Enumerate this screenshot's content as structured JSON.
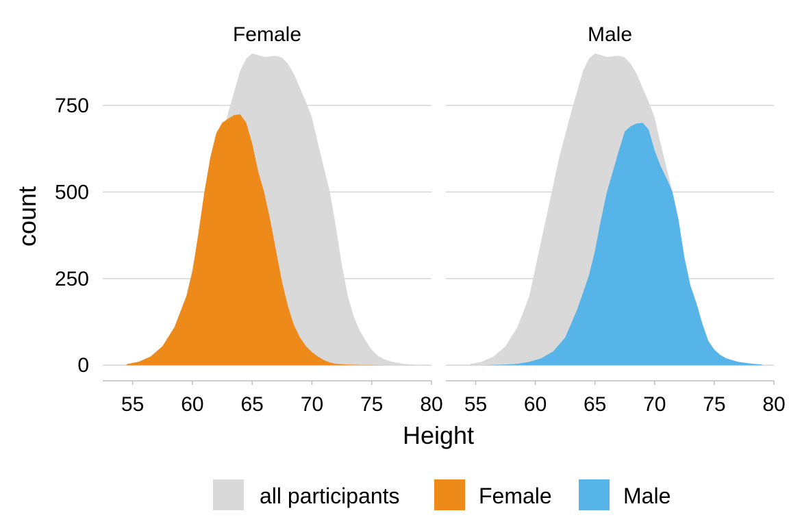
{
  "chart_data": {
    "type": "area",
    "xlabel": "Height",
    "ylabel": "count",
    "xlim": [
      52.5,
      80
    ],
    "ylim": [
      -45,
      900
    ],
    "x_ticks": [
      55,
      60,
      65,
      70,
      75,
      80
    ],
    "y_ticks": [
      0,
      250,
      500,
      750
    ],
    "grid": "horizontal",
    "legend_position": "bottom",
    "colors": {
      "all participants": "#d9d9d9",
      "Female": "#ee8a1a",
      "Male": "#56b4e9"
    },
    "legend": [
      "all participants",
      "Female",
      "Male"
    ],
    "background_series": {
      "name": "all participants",
      "x": [
        54.5,
        55.5,
        56.5,
        57.5,
        58.5,
        59.5,
        60.5,
        61.5,
        62,
        62.5,
        63,
        63.5,
        64,
        64.5,
        65,
        65.5,
        66,
        67,
        67.5,
        68,
        68.5,
        69,
        69.5,
        70,
        70.5,
        71,
        71.5,
        72,
        72.5,
        73,
        73.5,
        74,
        74.5,
        75,
        75.5,
        76,
        76.5,
        77,
        77.5,
        78,
        78.5,
        79
      ],
      "values": [
        3,
        10,
        25,
        55,
        110,
        200,
        360,
        520,
        600,
        665,
        730,
        790,
        850,
        885,
        900,
        895,
        890,
        893,
        888,
        870,
        840,
        800,
        760,
        715,
        640,
        570,
        500,
        400,
        290,
        200,
        140,
        100,
        70,
        45,
        28,
        18,
        12,
        8,
        5,
        3,
        2,
        1
      ]
    },
    "panels": [
      {
        "title": "Female",
        "series": {
          "name": "Female",
          "x": [
            54.5,
            55.5,
            56.5,
            57.5,
            58.5,
            59.5,
            60,
            60.5,
            61,
            61.5,
            62,
            62.5,
            63,
            63.5,
            64,
            64.5,
            65,
            65.5,
            66,
            66.5,
            67,
            67.5,
            68,
            68.5,
            69,
            69.5,
            70,
            70.5,
            71,
            71.5,
            72,
            72.5,
            73,
            74,
            75,
            76,
            77,
            78,
            79
          ],
          "values": [
            3,
            10,
            25,
            55,
            110,
            200,
            270,
            380,
            500,
            600,
            670,
            700,
            712,
            722,
            724,
            700,
            640,
            560,
            500,
            420,
            330,
            240,
            170,
            115,
            80,
            55,
            38,
            25,
            15,
            8,
            4,
            3,
            2,
            1,
            1,
            0,
            0,
            0,
            0
          ]
        }
      },
      {
        "title": "Male",
        "series": {
          "name": "Male",
          "x": [
            54.5,
            55.5,
            56.5,
            57.5,
            58.5,
            59.5,
            60.5,
            61.5,
            62.5,
            63.5,
            64.5,
            65,
            65.5,
            66,
            66.5,
            67,
            67.5,
            68,
            68.5,
            69,
            69.5,
            70,
            70.5,
            71,
            71.5,
            72,
            72.5,
            73,
            73.5,
            74,
            74.5,
            75,
            75.5,
            76,
            76.5,
            77,
            78,
            79
          ],
          "values": [
            0,
            0,
            1,
            2,
            4,
            10,
            20,
            40,
            80,
            160,
            260,
            330,
            420,
            500,
            560,
            620,
            675,
            690,
            698,
            700,
            680,
            620,
            575,
            540,
            500,
            420,
            310,
            230,
            180,
            120,
            70,
            45,
            30,
            20,
            15,
            10,
            5,
            2
          ]
        }
      }
    ]
  }
}
